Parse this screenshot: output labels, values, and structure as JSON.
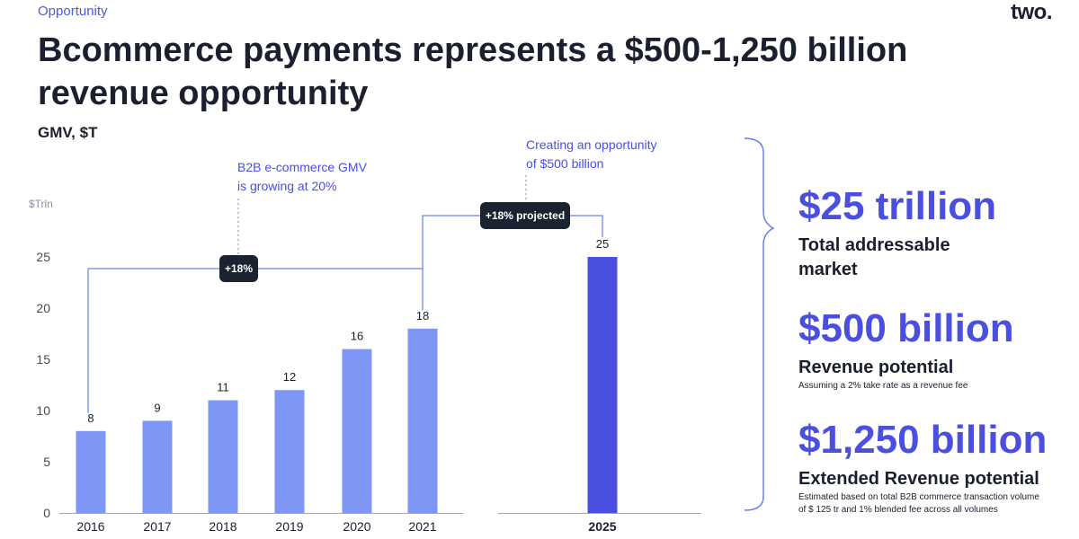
{
  "header": {
    "section": "Opportunity",
    "logo": "two.",
    "title": "Bcommerce payments represents a $500-1,250 billion revenue opportunity",
    "metric": "GMV, $T"
  },
  "chart_data": {
    "type": "bar",
    "ylabel": "$Trln",
    "ylim": [
      0,
      25
    ],
    "yticks": [
      0,
      5,
      10,
      15,
      20,
      25
    ],
    "categories": [
      "2016",
      "2017",
      "2018",
      "2019",
      "2020",
      "2021",
      "2025"
    ],
    "values": [
      8,
      9,
      11,
      12,
      16,
      18,
      25
    ],
    "data_labels": [
      "8",
      "9",
      "11",
      "12",
      "16",
      "18",
      "25"
    ],
    "colors": [
      "#7e97f6",
      "#7e97f6",
      "#7e97f6",
      "#7e97f6",
      "#7e97f6",
      "#7e97f6",
      "#4a4fe0"
    ],
    "annotations": {
      "growth_note": [
        "B2B e-commerce GMV",
        "is growing at 20%"
      ],
      "growth_badge": "+18%",
      "projected_badge": "+18% projected",
      "opportunity_note": [
        "Creating an opportunity",
        "of $500 billion"
      ]
    }
  },
  "summary": {
    "tam_value": "$25 trillion",
    "tam_label": [
      "Total addressable",
      "market"
    ],
    "rev_value": "$500 billion",
    "rev_label": "Revenue potential",
    "rev_note": "Assuming a 2% take rate as a revenue fee",
    "ext_value": "$1,250 billion",
    "ext_label": "Extended Revenue potential",
    "ext_note": [
      "Estimated based on total B2B commerce transaction volume",
      "of $ 125 tr and 1% blended fee across all volumes"
    ]
  },
  "colors": {
    "accent": "#4a4fe0",
    "bar": "#7e97f6",
    "badge": "#1b2330",
    "line": "#6b7fe6"
  }
}
